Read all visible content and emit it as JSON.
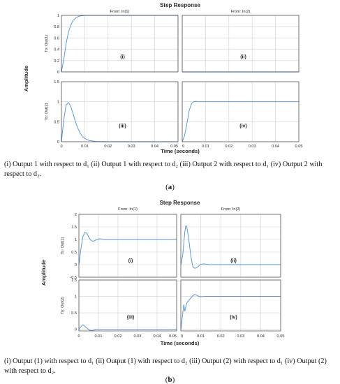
{
  "figures": [
    {
      "title": "Step Response",
      "from_labels": [
        "From: In(1)",
        "From: In(2)"
      ],
      "to_labels": [
        "To: Out(1)",
        "To: Out(2)"
      ],
      "ylabel": "Amplitude",
      "xlabel": "Time (seconds)",
      "caption": "(i) Output 1 with respect to d₁ (ii) Output 1 with respect to d₂ (iii) Output 2 with respect to d₁ (iv) Output 2 with respect to d₂.",
      "sub_label": "a"
    },
    {
      "title": "Step Response",
      "from_labels": [
        "From: In(1)",
        "From: In(2)"
      ],
      "to_labels": [
        "To: Out(1)",
        "To: Out(2)"
      ],
      "ylabel": "Amplitude",
      "xlabel": "Time (seconds)",
      "caption": "(i) Output (1) with respect to d₁ (ii) Output (1) with respect to d₂ (iii) Output (2) with respect to d₁ (iv) Output (2) with respect to d₂.",
      "sub_label": "b"
    }
  ],
  "chart_data": [
    {
      "type": "line",
      "figure": "a",
      "panel": "(i)",
      "row": 0,
      "col": 0,
      "xlim": [
        0,
        0.05
      ],
      "ylim": [
        0,
        1
      ],
      "xticks": [
        0,
        0.01,
        0.02,
        0.03,
        0.04,
        0.05
      ],
      "xtick_labels": [
        "0",
        "0.01",
        "0.02",
        "0.03",
        "0.04",
        "0.05"
      ],
      "yticks": [
        0,
        0.2,
        0.4,
        0.6,
        0.8,
        1
      ],
      "ytick_labels": [
        "0",
        "0.2",
        "0.4",
        "0.6",
        "0.8",
        "1"
      ],
      "x": [
        0,
        0.001,
        0.002,
        0.003,
        0.004,
        0.005,
        0.006,
        0.007,
        0.008,
        0.009,
        0.01,
        0.012,
        0.015,
        0.02,
        0.03,
        0.04,
        0.05
      ],
      "y": [
        0,
        0.22,
        0.5,
        0.7,
        0.83,
        0.91,
        0.95,
        0.975,
        0.99,
        0.995,
        1.0,
        1.0,
        1.0,
        1.0,
        1.0,
        1.0,
        1.0
      ]
    },
    {
      "type": "line",
      "figure": "a",
      "panel": "(ii)",
      "row": 0,
      "col": 1,
      "xlim": [
        0,
        0.05
      ],
      "ylim": [
        0,
        1
      ],
      "xticks": [
        0,
        0.01,
        0.02,
        0.03,
        0.04,
        0.05
      ],
      "xtick_labels": [
        "0",
        "0.01",
        "0.02",
        "0.03",
        "0.04",
        "0.05"
      ],
      "yticks": [
        0,
        0.2,
        0.4,
        0.6,
        0.8,
        1
      ],
      "ytick_labels": [
        "0",
        "0.2",
        "0.4",
        "0.6",
        "0.8",
        "1"
      ],
      "x": [
        0,
        0.0005,
        0.001,
        0.0015,
        0.002,
        0.003,
        0.004,
        0.005,
        0.006,
        0.007,
        0.008,
        0.01,
        0.02,
        0.05
      ],
      "y": [
        0,
        -0.03,
        -0.06,
        -0.07,
        -0.06,
        -0.04,
        -0.02,
        -0.01,
        -0.003,
        0,
        0,
        0,
        0,
        0
      ]
    },
    {
      "type": "line",
      "figure": "a",
      "panel": "(iii)",
      "row": 1,
      "col": 0,
      "xlim": [
        0,
        0.05
      ],
      "ylim": [
        0,
        1.5
      ],
      "xticks": [
        0,
        0.01,
        0.02,
        0.03,
        0.04,
        0.05
      ],
      "xtick_labels": [
        "0",
        "0.01",
        "0.02",
        "0.03",
        "0.04",
        "0.05"
      ],
      "yticks": [
        0,
        0.5,
        1,
        1.5
      ],
      "ytick_labels": [
        "0",
        "0.5",
        "1",
        "1.5"
      ],
      "x": [
        0,
        0.001,
        0.002,
        0.003,
        0.004,
        0.005,
        0.006,
        0.007,
        0.008,
        0.009,
        0.01,
        0.012,
        0.015,
        0.02,
        0.05
      ],
      "y": [
        0,
        0.55,
        0.92,
        0.98,
        0.88,
        0.7,
        0.5,
        0.34,
        0.22,
        0.13,
        0.08,
        0.03,
        0.005,
        0,
        0
      ]
    },
    {
      "type": "line",
      "figure": "a",
      "panel": "(iv)",
      "row": 1,
      "col": 1,
      "xlim": [
        0,
        0.05
      ],
      "ylim": [
        0,
        1.5
      ],
      "xticks": [
        0,
        0.01,
        0.02,
        0.03,
        0.04,
        0.05
      ],
      "xtick_labels": [
        "0",
        "0.01",
        "0.02",
        "0.03",
        "0.04",
        "0.05"
      ],
      "yticks": [
        0,
        0.5,
        1,
        1.5
      ],
      "ytick_labels": [
        "0",
        "0.5",
        "1",
        "1.5"
      ],
      "x": [
        0,
        0.001,
        0.002,
        0.003,
        0.004,
        0.005,
        0.006,
        0.007,
        0.008,
        0.01,
        0.02,
        0.05
      ],
      "y": [
        0,
        0.15,
        0.45,
        0.78,
        0.95,
        1.0,
        1.01,
        1.0,
        1.0,
        1.0,
        1.0,
        1.0
      ]
    },
    {
      "type": "line",
      "figure": "b",
      "panel": "(i)",
      "row": 0,
      "col": 0,
      "xlim": [
        0,
        0.05
      ],
      "ylim": [
        -0.5,
        2
      ],
      "xticks": [
        0,
        0.01,
        0.02,
        0.03,
        0.04,
        0.05
      ],
      "xtick_labels": [
        "0",
        "0.01",
        "0.02",
        "0.03",
        "0.04",
        "0.05"
      ],
      "yticks": [
        -0.5,
        0,
        0.5,
        1,
        1.5,
        2
      ],
      "ytick_labels": [
        "-0.5",
        "0",
        "0.5",
        "1",
        "1.5",
        "2"
      ],
      "x": [
        0,
        0.001,
        0.002,
        0.003,
        0.004,
        0.005,
        0.006,
        0.007,
        0.008,
        0.009,
        0.01,
        0.011,
        0.012,
        0.014,
        0.016,
        0.02,
        0.05
      ],
      "y": [
        0,
        0.6,
        1.1,
        1.28,
        1.25,
        1.1,
        0.98,
        0.93,
        0.95,
        0.99,
        1.02,
        1.03,
        1.01,
        1.0,
        1.0,
        1.0,
        1.0
      ]
    },
    {
      "type": "line",
      "figure": "b",
      "panel": "(ii)",
      "row": 0,
      "col": 1,
      "xlim": [
        0,
        0.05
      ],
      "ylim": [
        -0.5,
        2
      ],
      "xticks": [
        0,
        0.01,
        0.02,
        0.03,
        0.04,
        0.05
      ],
      "xtick_labels": [
        "0",
        "0.01",
        "0.02",
        "0.03",
        "0.04",
        "0.05"
      ],
      "yticks": [
        -0.5,
        0,
        0.5,
        1,
        1.5,
        2
      ],
      "ytick_labels": [
        "-0.5",
        "0",
        "0.5",
        "1",
        "1.5",
        "2"
      ],
      "x": [
        0,
        0.001,
        0.002,
        0.0025,
        0.003,
        0.004,
        0.005,
        0.006,
        0.007,
        0.008,
        0.009,
        0.01,
        0.012,
        0.014,
        0.02,
        0.05
      ],
      "y": [
        0,
        0.4,
        1.3,
        1.55,
        1.5,
        1.0,
        0.35,
        -0.08,
        -0.15,
        -0.12,
        -0.05,
        0.02,
        0.03,
        0.0,
        0,
        0
      ]
    },
    {
      "type": "line",
      "figure": "b",
      "panel": "(iii)",
      "row": 1,
      "col": 0,
      "xlim": [
        0,
        0.05
      ],
      "ylim": [
        -0.05,
        1.5
      ],
      "xticks": [
        0,
        0.01,
        0.02,
        0.03,
        0.04,
        0.05
      ],
      "xtick_labels": [
        "0",
        "0.01",
        "0.02",
        "0.03",
        "0.04",
        "0.05"
      ],
      "yticks": [
        0,
        0.5,
        1,
        1.5
      ],
      "ytick_labels": [
        "0",
        "0.5",
        "1",
        "1.5"
      ],
      "x": [
        0,
        0.001,
        0.002,
        0.003,
        0.004,
        0.005,
        0.006,
        0.007,
        0.008,
        0.009,
        0.01,
        0.012,
        0.02,
        0.05
      ],
      "y": [
        0,
        0.08,
        0.14,
        0.1,
        0.04,
        -0.01,
        -0.04,
        -0.04,
        -0.02,
        -0.01,
        0,
        0,
        0,
        0
      ]
    },
    {
      "type": "line",
      "figure": "b",
      "panel": "(iv)",
      "row": 1,
      "col": 1,
      "xlim": [
        0,
        0.05
      ],
      "ylim": [
        -0.05,
        1.5
      ],
      "xticks": [
        0,
        0.01,
        0.02,
        0.03,
        0.04,
        0.05
      ],
      "xtick_labels": [
        "0",
        "0.01",
        "0.02",
        "0.03",
        "0.04",
        "0.05"
      ],
      "yticks": [
        0,
        0.5,
        1,
        1.5
      ],
      "ytick_labels": [
        "0",
        "0.5",
        "1",
        "1.5"
      ],
      "x": [
        0,
        0.001,
        0.0015,
        0.002,
        0.0025,
        0.003,
        0.004,
        0.005,
        0.006,
        0.007,
        0.008,
        0.009,
        0.01,
        0.012,
        0.014,
        0.02,
        0.05
      ],
      "y": [
        0,
        0.5,
        0.75,
        0.55,
        0.68,
        0.8,
        0.88,
        0.95,
        1.02,
        1.06,
        1.04,
        1.0,
        0.99,
        1.0,
        1.0,
        1.0,
        1.0
      ]
    }
  ],
  "colors": {
    "line": "#4d8fd1",
    "grid": "#cfcfcf",
    "frame": "#262626",
    "text": "#262626"
  }
}
